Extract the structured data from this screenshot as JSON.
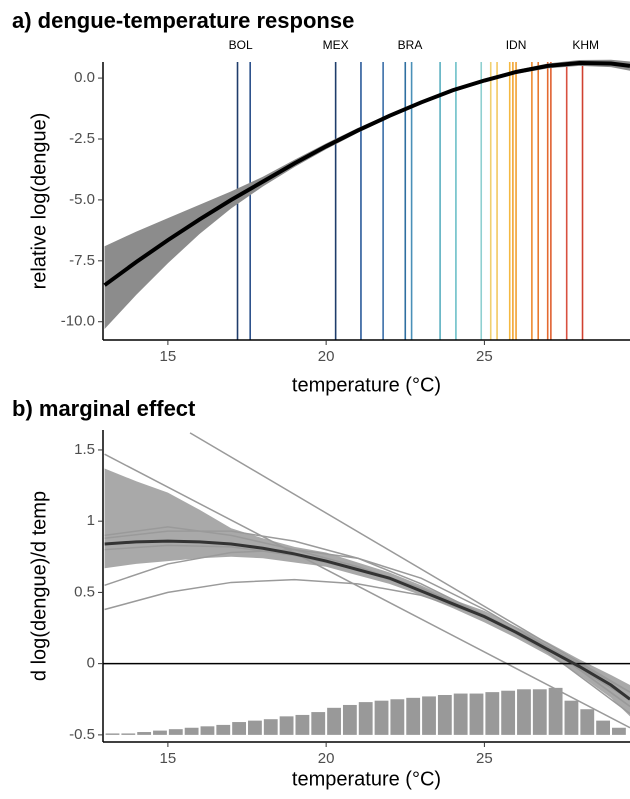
{
  "chart_data": [
    {
      "type": "line",
      "title": "a) dengue-temperature response",
      "xlabel": "temperature (°C)",
      "ylabel": "relative log(dengue)",
      "xlim": [
        12.95,
        29.6
      ],
      "ylim": [
        -10.75,
        0.66
      ],
      "xticks": [
        15,
        20,
        25
      ],
      "yticks": [
        {
          "value": 0,
          "label": "0.0"
        },
        -2.5,
        {
          "value": -5,
          "label": "-5.0"
        },
        -7.5,
        {
          "value": -10,
          "label": "-10.0"
        }
      ],
      "x": [
        13,
        14,
        15,
        16,
        17,
        18,
        19,
        20,
        21,
        22,
        23,
        24,
        25,
        26,
        27,
        28,
        29,
        29.6
      ],
      "values": [
        -8.5,
        -7.55,
        -6.65,
        -5.8,
        -5.0,
        -4.25,
        -3.5,
        -2.8,
        -2.15,
        -1.55,
        -1.0,
        -0.5,
        -0.1,
        0.25,
        0.5,
        0.62,
        0.6,
        0.5
      ],
      "color": "#000000",
      "band": {
        "lower": [
          -10.3,
          -8.9,
          -7.6,
          -6.4,
          -5.35,
          -4.45,
          -3.65,
          -2.92,
          -2.25,
          -1.63,
          -1.07,
          -0.57,
          -0.17,
          0.17,
          0.4,
          0.5,
          0.45,
          0.3
        ],
        "upper": [
          -6.9,
          -6.3,
          -5.75,
          -5.2,
          -4.65,
          -4.05,
          -3.35,
          -2.68,
          -2.05,
          -1.47,
          -0.93,
          -0.43,
          -0.03,
          0.33,
          0.6,
          0.74,
          0.75,
          0.68
        ],
        "color": "#8c8c8c"
      },
      "vlines": {
        "x": [
          17.2,
          17.6,
          20.3,
          21.1,
          21.8,
          22.5,
          22.7,
          23.6,
          24.1,
          24.9,
          25.2,
          25.4,
          25.8,
          25.9,
          26.0,
          26.5,
          26.7,
          27.0,
          27.1,
          27.6,
          28.1
        ],
        "colors": [
          "#1f3d6b",
          "#2a4f8a",
          "#1f3d6b",
          "#2a5a9a",
          "#3a6ea8",
          "#2f6fa0",
          "#4a90b8",
          "#5aafc0",
          "#6cc0c8",
          "#8fd0d0",
          "#f0d070",
          "#f3c860",
          "#f5b840",
          "#f3a530",
          "#f1a030",
          "#ec8a30",
          "#e87a30",
          "#e46a30",
          "#e06030",
          "#d85040",
          "#d04030"
        ]
      },
      "annotations": [
        {
          "text": "BOL",
          "x": 17.3
        },
        {
          "text": "MEX",
          "x": 20.3
        },
        {
          "text": "BRA",
          "x": 22.65
        },
        {
          "text": "IDN",
          "x": 26.0
        },
        {
          "text": "KHM",
          "x": 28.2
        }
      ]
    },
    {
      "type": "line",
      "title": "b) marginal effect",
      "xlabel": "temperature (°C)",
      "ylabel": "d log(dengue)/d temp",
      "xlim": [
        12.95,
        29.6
      ],
      "ylim": [
        -0.55,
        1.64
      ],
      "xticks": [
        15,
        20,
        25
      ],
      "yticks": [
        1.5,
        1,
        0.5,
        0,
        -0.5
      ],
      "x": [
        13,
        14,
        15,
        16,
        17,
        18,
        19,
        20,
        21,
        22,
        23,
        24,
        25,
        26,
        27,
        28,
        29,
        29.6
      ],
      "values": [
        0.84,
        0.855,
        0.86,
        0.855,
        0.84,
        0.81,
        0.77,
        0.72,
        0.66,
        0.6,
        0.51,
        0.42,
        0.33,
        0.22,
        0.1,
        -0.02,
        -0.15,
        -0.25
      ],
      "color": "#333333",
      "band": {
        "lower": [
          0.67,
          0.7,
          0.72,
          0.74,
          0.75,
          0.74,
          0.71,
          0.68,
          0.62,
          0.56,
          0.48,
          0.39,
          0.29,
          0.18,
          0.06,
          -0.08,
          -0.24,
          -0.37
        ],
        "upper": [
          1.37,
          1.28,
          1.2,
          1.08,
          0.95,
          0.88,
          0.82,
          0.78,
          0.71,
          0.64,
          0.55,
          0.45,
          0.37,
          0.26,
          0.15,
          0.03,
          -0.08,
          -0.15
        ],
        "color": "#8c8c8c"
      },
      "hline": 0,
      "thin_lines": {
        "color": "#9a9a9a",
        "series": [
          {
            "x": [
              15.7,
              29.6
            ],
            "values": [
              1.62,
              -0.2
            ]
          },
          {
            "x": [
              13,
              29.6
            ],
            "values": [
              1.47,
              -0.45
            ]
          },
          {
            "x": [
              13,
              15,
              17,
              19,
              21,
              23,
              25,
              27,
              29.6
            ],
            "values": [
              0.38,
              0.5,
              0.57,
              0.59,
              0.56,
              0.48,
              0.33,
              0.12,
              -0.3
            ]
          },
          {
            "x": [
              13,
              15,
              17,
              19,
              21,
              23,
              25,
              27,
              29.6
            ],
            "values": [
              0.55,
              0.7,
              0.78,
              0.8,
              0.74,
              0.6,
              0.38,
              0.12,
              -0.3
            ]
          },
          {
            "x": [
              13,
              15,
              17,
              19,
              21,
              23,
              25,
              27,
              29.6
            ],
            "values": [
              0.88,
              0.93,
              0.93,
              0.86,
              0.74,
              0.56,
              0.34,
              0.08,
              -0.35
            ]
          },
          {
            "x": [
              13,
              15,
              17,
              19,
              21,
              23,
              25,
              27,
              29.6
            ],
            "values": [
              0.8,
              0.83,
              0.82,
              0.76,
              0.66,
              0.52,
              0.33,
              0.1,
              -0.25
            ]
          },
          {
            "x": [
              13,
              15,
              17,
              19,
              21,
              23,
              25,
              27,
              29.6
            ],
            "values": [
              0.9,
              0.96,
              0.9,
              0.8,
              0.68,
              0.53,
              0.34,
              0.12,
              -0.2
            ]
          }
        ]
      },
      "histogram": {
        "base": -0.5,
        "color": "#999999",
        "bins": [
          13,
          13.5,
          14,
          14.5,
          15,
          15.5,
          16,
          16.5,
          17,
          17.5,
          18,
          18.5,
          19,
          19.5,
          20,
          20.5,
          21,
          21.5,
          22,
          22.5,
          23,
          23.5,
          24,
          24.5,
          25,
          25.5,
          26,
          26.5,
          27,
          27.5,
          28,
          28.5,
          29,
          29.5
        ],
        "values": [
          -0.49,
          -0.49,
          -0.48,
          -0.47,
          -0.46,
          -0.45,
          -0.44,
          -0.43,
          -0.41,
          -0.4,
          -0.39,
          -0.37,
          -0.36,
          -0.34,
          -0.31,
          -0.29,
          -0.27,
          -0.26,
          -0.25,
          -0.24,
          -0.23,
          -0.22,
          -0.21,
          -0.21,
          -0.2,
          -0.19,
          -0.18,
          -0.18,
          -0.17,
          -0.26,
          -0.32,
          -0.4,
          -0.45
        ]
      }
    }
  ]
}
